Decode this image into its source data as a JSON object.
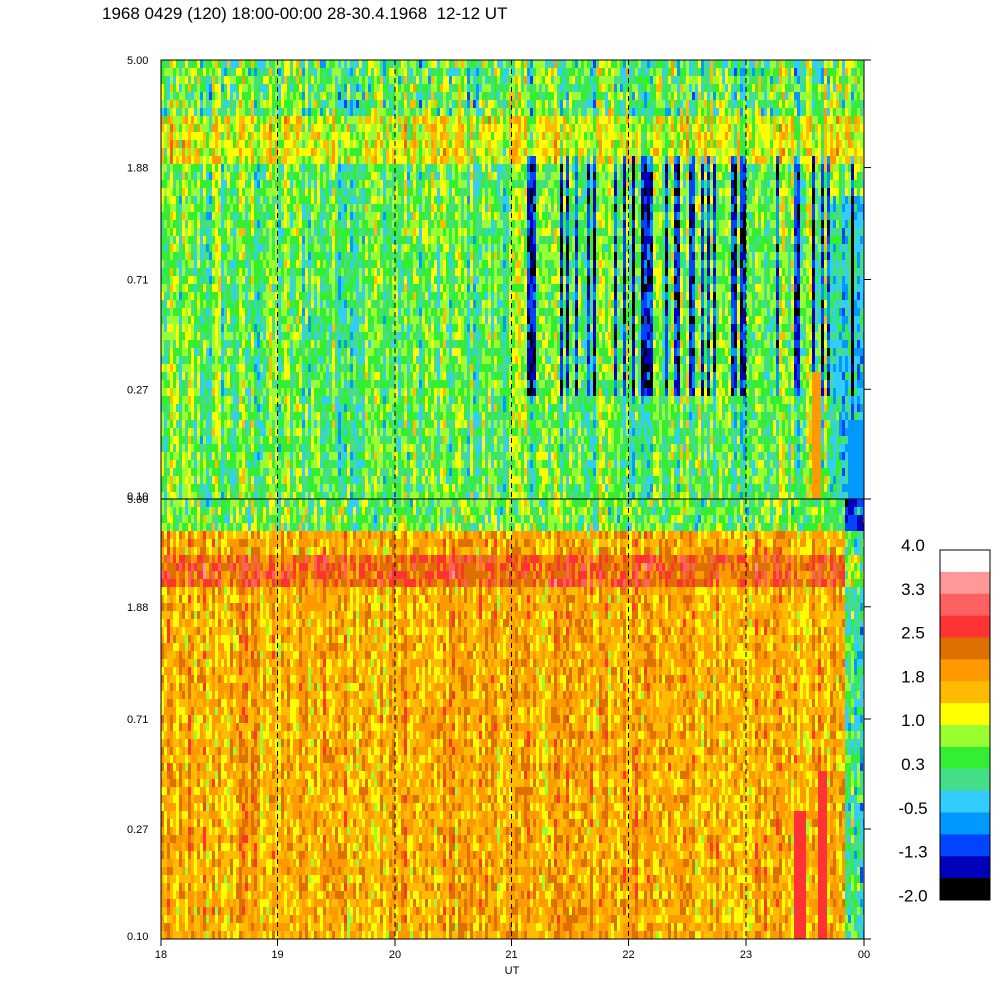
{
  "title": "1968 0429 (120) 18:00-00:00 28-30.4.1968  12-12 UT",
  "chart_data": [
    {
      "type": "heatmap",
      "panel": "top",
      "y_scale": "log",
      "y_ticks": [
        "5.00",
        "1.88",
        "0.71",
        "0.27",
        "0.10"
      ],
      "x_ticks": [
        "18",
        "19",
        "20",
        "21",
        "22",
        "23",
        "00"
      ],
      "xlabel": "UT",
      "dominant_levels": [
        "0.3",
        "1.0",
        "-0.5"
      ],
      "bands": [
        {
          "y": "~3 (log level)",
          "level": "1.0",
          "note": "yellow band near 3"
        },
        {
          "y": "1.88-0.27",
          "level": "-1.3",
          "note": "blue vertical streaks after 21 UT"
        }
      ]
    },
    {
      "type": "heatmap",
      "panel": "bottom",
      "y_scale": "log",
      "y_ticks": [
        "5.00",
        "1.88",
        "0.71",
        "0.27",
        "0.10"
      ],
      "x_ticks": [
        "18",
        "19",
        "20",
        "21",
        "22",
        "23",
        "00"
      ],
      "xlabel": "UT",
      "dominant_levels": [
        "1.8",
        "1.0",
        "2.5"
      ],
      "bands": [
        {
          "y": "~3",
          "level": "2.5",
          "note": "dark orange band near 3"
        },
        {
          "y": "0.27-0.10",
          "level": "3.3",
          "note": "red streaks near 23.5 UT"
        }
      ]
    }
  ],
  "colorbar": {
    "labels": [
      "4.0",
      "3.3",
      "2.5",
      "1.8",
      "1.0",
      "0.3",
      "-0.5",
      "-1.3",
      "-2.0"
    ],
    "colors": [
      "#ffffff",
      "#ff9999",
      "#ff6060",
      "#ff3333",
      "#dd7000",
      "#ff9900",
      "#ffbb00",
      "#ffff00",
      "#99ff33",
      "#33ee33",
      "#44dd88",
      "#33ccff",
      "#0099ff",
      "#0044ff",
      "#0000bb",
      "#000000"
    ]
  }
}
